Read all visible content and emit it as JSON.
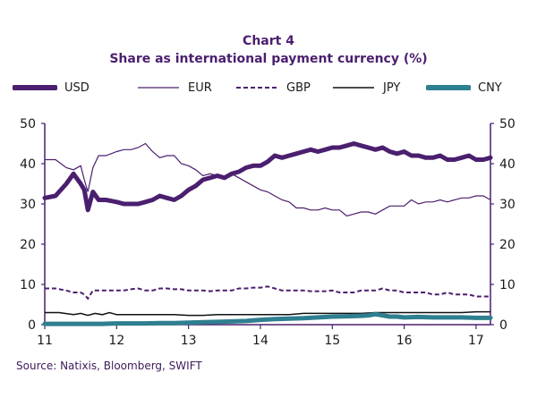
{
  "header": {
    "chart_number": "Chart 4",
    "title": "Share as international payment currency (%)"
  },
  "source": "Source: Natixis, Bloomberg, SWIFT",
  "colors": {
    "usd": "#4b1f6f",
    "eur": "#4b1f6f",
    "gbp": "#4b1f6f",
    "jpy": "#111111",
    "cny": "#2e7f8f",
    "axis": "#4b1f6f"
  },
  "chart_data": {
    "type": "line",
    "title": "Share as international payment currency (%)",
    "xlabel": "",
    "ylabel": "",
    "xlim": [
      11.0,
      17.2
    ],
    "ylim": [
      0,
      50
    ],
    "y_ticks": [
      "0",
      "10",
      "20",
      "30",
      "40",
      "50"
    ],
    "y_tick_values": [
      0,
      10,
      20,
      30,
      40,
      50
    ],
    "x_ticks": [
      "11",
      "12",
      "13",
      "14",
      "15",
      "16",
      "17"
    ],
    "x_tick_values": [
      11,
      12,
      13,
      14,
      15,
      16,
      17
    ],
    "grid": false,
    "legend_position": "top",
    "series": [
      {
        "name": "USD",
        "style": "thick",
        "x": [
          11.0,
          11.15,
          11.3,
          11.4,
          11.5,
          11.55,
          11.6,
          11.67,
          11.75,
          11.85,
          12.0,
          12.1,
          12.2,
          12.3,
          12.4,
          12.5,
          12.6,
          12.7,
          12.8,
          12.9,
          13.0,
          13.1,
          13.2,
          13.3,
          13.4,
          13.5,
          13.6,
          13.7,
          13.8,
          13.9,
          14.0,
          14.1,
          14.2,
          14.3,
          14.4,
          14.5,
          14.6,
          14.7,
          14.8,
          14.9,
          15.0,
          15.1,
          15.2,
          15.3,
          15.4,
          15.5,
          15.6,
          15.7,
          15.8,
          15.9,
          16.0,
          16.1,
          16.2,
          16.3,
          16.4,
          16.5,
          16.6,
          16.7,
          16.8,
          16.9,
          17.0,
          17.1,
          17.2
        ],
        "values": [
          31.5,
          32.0,
          35.0,
          37.5,
          35.0,
          33.5,
          28.5,
          33.0,
          31.0,
          31.0,
          30.5,
          30.0,
          30.0,
          30.0,
          30.5,
          31.0,
          32.0,
          31.5,
          31.0,
          32.0,
          33.5,
          34.5,
          36.0,
          36.5,
          37.0,
          36.5,
          37.5,
          38.0,
          39.0,
          39.5,
          39.5,
          40.5,
          42.0,
          41.5,
          42.0,
          42.5,
          43.0,
          43.5,
          43.0,
          43.5,
          44.0,
          44.0,
          44.5,
          45.0,
          44.5,
          44.0,
          43.5,
          44.0,
          43.0,
          42.5,
          43.0,
          42.0,
          42.0,
          41.5,
          41.5,
          42.0,
          41.0,
          41.0,
          41.5,
          42.0,
          41.0,
          41.0,
          41.5
        ]
      },
      {
        "name": "EUR",
        "style": "thin",
        "x": [
          11.0,
          11.15,
          11.3,
          11.4,
          11.5,
          11.55,
          11.6,
          11.67,
          11.75,
          11.85,
          12.0,
          12.1,
          12.2,
          12.3,
          12.4,
          12.5,
          12.6,
          12.7,
          12.8,
          12.9,
          13.0,
          13.1,
          13.2,
          13.3,
          13.4,
          13.5,
          13.6,
          13.7,
          13.8,
          13.9,
          14.0,
          14.1,
          14.2,
          14.3,
          14.4,
          14.5,
          14.6,
          14.7,
          14.8,
          14.9,
          15.0,
          15.1,
          15.2,
          15.3,
          15.4,
          15.5,
          15.6,
          15.7,
          15.8,
          15.9,
          16.0,
          16.1,
          16.2,
          16.3,
          16.4,
          16.5,
          16.6,
          16.7,
          16.8,
          16.9,
          17.0,
          17.1,
          17.2
        ],
        "values": [
          41.0,
          41.0,
          39.0,
          38.5,
          39.5,
          36.0,
          33.0,
          39.0,
          42.0,
          42.0,
          43.0,
          43.5,
          43.5,
          44.0,
          45.0,
          43.0,
          41.5,
          42.0,
          42.0,
          40.0,
          39.5,
          38.5,
          37.0,
          37.5,
          37.0,
          36.5,
          37.5,
          36.5,
          35.5,
          34.5,
          33.5,
          33.0,
          32.0,
          31.0,
          30.5,
          29.0,
          29.0,
          28.5,
          28.5,
          29.0,
          28.5,
          28.5,
          27.0,
          27.5,
          28.0,
          28.0,
          27.5,
          28.5,
          29.5,
          29.5,
          29.5,
          31.0,
          30.0,
          30.5,
          30.5,
          31.0,
          30.5,
          31.0,
          31.5,
          31.5,
          32.0,
          32.0,
          31.0
        ]
      },
      {
        "name": "GBP",
        "style": "dashed",
        "x": [
          11.0,
          11.15,
          11.3,
          11.4,
          11.5,
          11.55,
          11.6,
          11.67,
          11.75,
          11.85,
          12.0,
          12.1,
          12.2,
          12.3,
          12.4,
          12.5,
          12.6,
          12.7,
          12.8,
          12.9,
          13.0,
          13.1,
          13.2,
          13.3,
          13.4,
          13.5,
          13.6,
          13.7,
          13.8,
          13.9,
          14.0,
          14.1,
          14.2,
          14.3,
          14.4,
          14.5,
          14.6,
          14.7,
          14.8,
          14.9,
          15.0,
          15.1,
          15.2,
          15.3,
          15.4,
          15.5,
          15.6,
          15.7,
          15.8,
          15.9,
          16.0,
          16.1,
          16.2,
          16.3,
          16.4,
          16.5,
          16.6,
          16.7,
          16.8,
          16.9,
          17.0,
          17.1,
          17.2
        ],
        "values": [
          9.0,
          9.0,
          8.5,
          8.0,
          8.0,
          7.5,
          6.5,
          8.5,
          8.5,
          8.5,
          8.5,
          8.5,
          8.8,
          9.0,
          8.5,
          8.5,
          9.0,
          9.0,
          8.8,
          8.8,
          8.5,
          8.5,
          8.5,
          8.3,
          8.5,
          8.5,
          8.5,
          9.0,
          9.0,
          9.2,
          9.2,
          9.5,
          9.0,
          8.5,
          8.5,
          8.5,
          8.5,
          8.3,
          8.3,
          8.3,
          8.5,
          8.0,
          8.0,
          8.0,
          8.5,
          8.5,
          8.5,
          9.0,
          8.5,
          8.5,
          8.0,
          8.0,
          8.0,
          8.0,
          7.5,
          7.5,
          8.0,
          7.5,
          7.5,
          7.5,
          7.0,
          7.0,
          7.0
        ]
      },
      {
        "name": "JPY",
        "style": "thin",
        "x": [
          11.0,
          11.2,
          11.4,
          11.5,
          11.6,
          11.7,
          11.8,
          11.9,
          12.0,
          12.2,
          12.4,
          12.6,
          12.8,
          13.0,
          13.2,
          13.4,
          13.6,
          13.8,
          14.0,
          14.2,
          14.4,
          14.6,
          14.8,
          15.0,
          15.2,
          15.4,
          15.6,
          15.8,
          16.0,
          16.2,
          16.4,
          16.6,
          16.8,
          17.0,
          17.2
        ],
        "values": [
          3.0,
          3.0,
          2.5,
          2.8,
          2.3,
          2.8,
          2.5,
          3.0,
          2.5,
          2.5,
          2.5,
          2.5,
          2.5,
          2.3,
          2.3,
          2.5,
          2.5,
          2.5,
          2.5,
          2.5,
          2.5,
          2.8,
          2.8,
          2.8,
          2.8,
          2.8,
          3.0,
          3.0,
          3.0,
          3.0,
          3.0,
          3.0,
          3.0,
          3.2,
          3.2
        ]
      },
      {
        "name": "CNY",
        "style": "thick",
        "x": [
          11.0,
          11.2,
          11.4,
          11.6,
          11.8,
          12.0,
          12.2,
          12.4,
          12.6,
          12.8,
          13.0,
          13.2,
          13.4,
          13.6,
          13.8,
          14.0,
          14.2,
          14.4,
          14.6,
          14.8,
          15.0,
          15.2,
          15.4,
          15.5,
          15.6,
          15.7,
          15.8,
          15.9,
          16.0,
          16.2,
          16.4,
          16.6,
          16.8,
          17.0,
          17.2
        ],
        "values": [
          0.2,
          0.2,
          0.2,
          0.2,
          0.2,
          0.3,
          0.3,
          0.3,
          0.4,
          0.4,
          0.5,
          0.6,
          0.7,
          0.8,
          0.9,
          1.2,
          1.4,
          1.5,
          1.6,
          1.8,
          2.0,
          2.1,
          2.2,
          2.3,
          2.6,
          2.3,
          2.0,
          2.0,
          1.8,
          1.9,
          1.8,
          1.8,
          1.8,
          1.7,
          1.7
        ]
      }
    ]
  }
}
